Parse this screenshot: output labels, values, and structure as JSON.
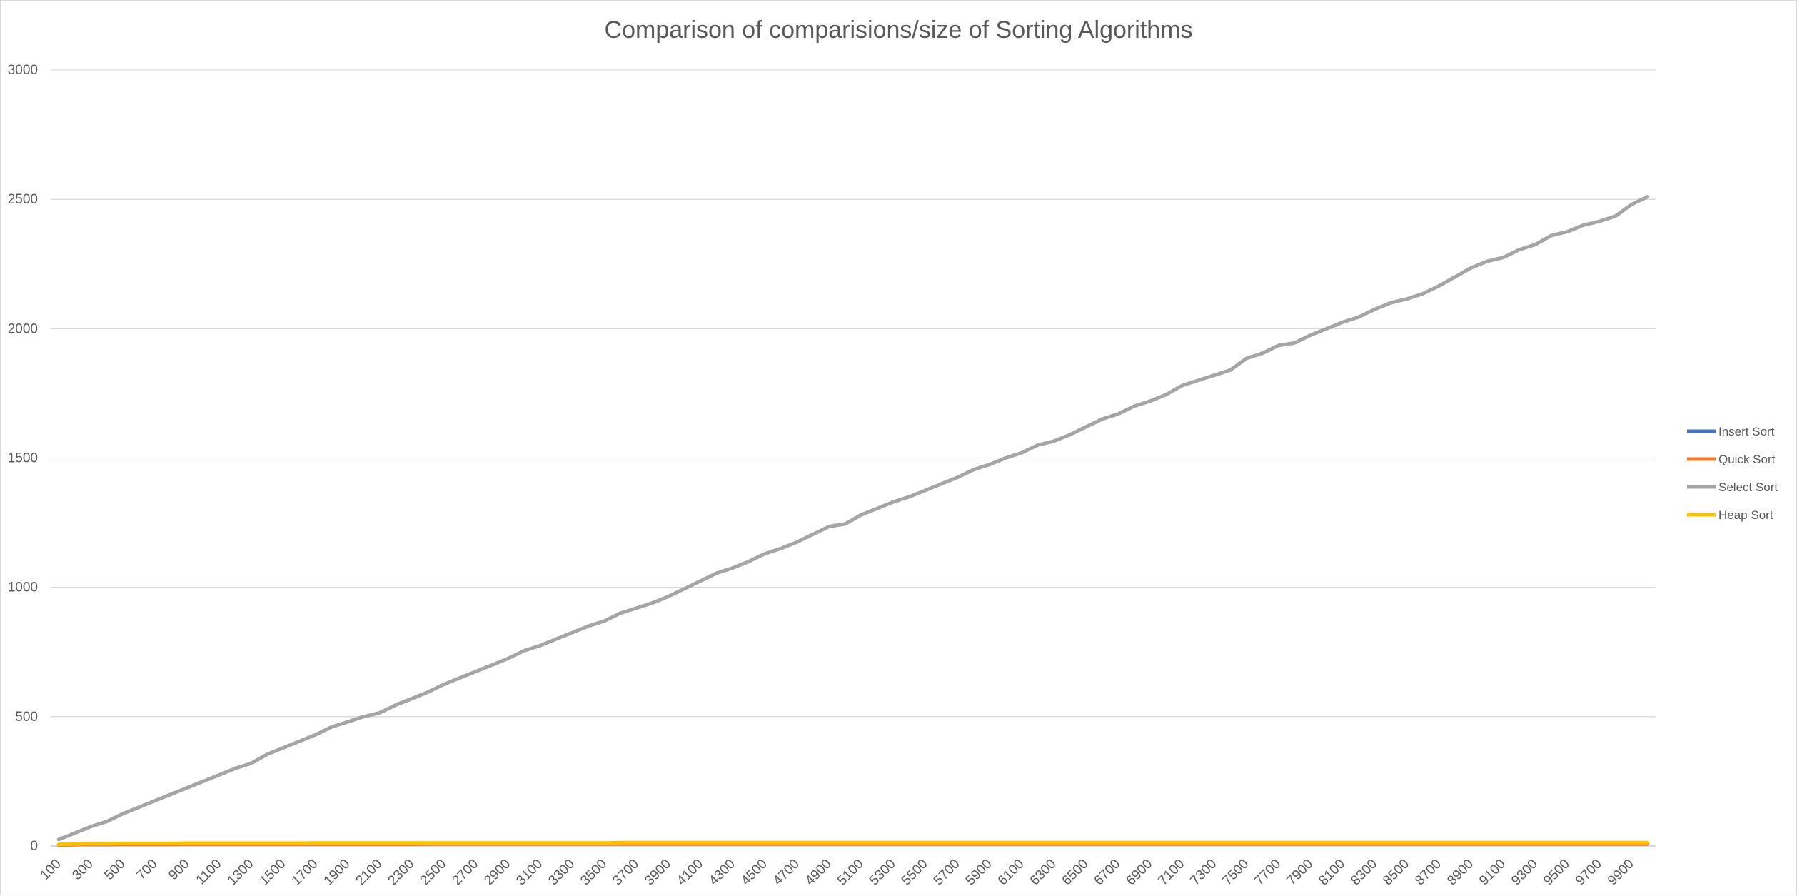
{
  "chart_data": {
    "type": "line",
    "title": "Comparison of comparisions/size of Sorting Algorithms",
    "xlabel": "",
    "ylabel": "",
    "ylim": [
      0,
      3000
    ],
    "yticks": [
      0,
      500,
      1000,
      1500,
      2000,
      2500,
      3000
    ],
    "grid": true,
    "legend_position": "right",
    "x": [
      100,
      200,
      300,
      400,
      500,
      600,
      700,
      800,
      900,
      1000,
      1100,
      1200,
      1300,
      1400,
      1500,
      1600,
      1700,
      1800,
      1900,
      2000,
      2100,
      2200,
      2300,
      2400,
      2500,
      2600,
      2700,
      2800,
      2900,
      3000,
      3100,
      3200,
      3300,
      3400,
      3500,
      3600,
      3700,
      3800,
      3900,
      4000,
      4100,
      4200,
      4300,
      4400,
      4500,
      4600,
      4700,
      4800,
      4900,
      5000,
      5100,
      5200,
      5300,
      5400,
      5500,
      5600,
      5700,
      5800,
      5900,
      6000,
      6100,
      6200,
      6300,
      6400,
      6500,
      6600,
      6700,
      6800,
      6900,
      7000,
      7100,
      7200,
      7300,
      7400,
      7500,
      7600,
      7700,
      7800,
      7900,
      8000,
      8100,
      8200,
      8300,
      8400,
      8500,
      8600,
      8700,
      8800,
      8900,
      9000,
      9100,
      9200,
      9300,
      9400,
      9500,
      9600,
      9700,
      9800,
      9900,
      10000
    ],
    "x_tick_labels": [
      "100",
      "300",
      "500",
      "700",
      "900",
      "1100",
      "1300",
      "1500",
      "1700",
      "1900",
      "2100",
      "2300",
      "2500",
      "2700",
      "2900",
      "3100",
      "3300",
      "3500",
      "3700",
      "3900",
      "4100",
      "4300",
      "4500",
      "4700",
      "4900",
      "5100",
      "5300",
      "5500",
      "5700",
      "5900",
      "6100",
      "6300",
      "6500",
      "6700",
      "6900",
      "7100",
      "7300",
      "7500",
      "7700",
      "7900",
      "8100",
      "8300",
      "8500",
      "8700",
      "8900",
      "9100",
      "9300",
      "9500",
      "9700",
      "9900"
    ],
    "series": [
      {
        "name": "Insert Sort",
        "color": "#4472c4",
        "values": [
          5,
          6,
          6,
          6,
          7,
          7,
          7,
          7,
          7,
          8,
          8,
          8,
          8,
          8,
          8,
          8,
          8,
          8,
          8,
          8,
          9,
          9,
          9,
          9,
          9,
          9,
          9,
          9,
          9,
          9,
          9,
          9,
          9,
          9,
          9,
          9,
          9,
          9,
          9,
          9,
          9,
          9,
          9,
          9,
          9,
          9,
          9,
          9,
          9,
          9,
          9,
          9,
          9,
          9,
          9,
          9,
          10,
          10,
          10,
          10,
          10,
          10,
          10,
          10,
          10,
          10,
          10,
          10,
          10,
          10,
          10,
          10,
          10,
          10,
          10,
          10,
          10,
          10,
          10,
          10,
          10,
          10,
          10,
          10,
          10,
          10,
          10,
          10,
          10,
          10,
          10,
          10,
          10,
          10,
          10,
          10,
          10,
          10,
          10,
          10
        ]
      },
      {
        "name": "Quick Sort",
        "color": "#ed7d31",
        "values": [
          4,
          5,
          6,
          6,
          6,
          6,
          6,
          6,
          7,
          7,
          7,
          7,
          7,
          7,
          7,
          7,
          7,
          7,
          7,
          7,
          7,
          7,
          7,
          8,
          8,
          8,
          8,
          8,
          8,
          8,
          8,
          8,
          8,
          8,
          8,
          8,
          8,
          8,
          8,
          8,
          8,
          8,
          8,
          8,
          8,
          8,
          8,
          8,
          8,
          8,
          8,
          8,
          8,
          8,
          8,
          8,
          8,
          8,
          8,
          8,
          8,
          8,
          8,
          8,
          8,
          8,
          8,
          8,
          8,
          8,
          8,
          8,
          8,
          8,
          8,
          8,
          8,
          8,
          8,
          8,
          8,
          8,
          8,
          8,
          8,
          8,
          8,
          8,
          8,
          8,
          8,
          8,
          8,
          8,
          8,
          8,
          8,
          8,
          8,
          8
        ]
      },
      {
        "name": "Select Sort",
        "color": "#a5a5a5",
        "values": [
          25,
          50,
          75,
          95,
          125,
          150,
          175,
          200,
          225,
          250,
          275,
          300,
          320,
          355,
          380,
          405,
          430,
          460,
          480,
          500,
          515,
          545,
          570,
          595,
          625,
          650,
          675,
          700,
          725,
          755,
          775,
          800,
          825,
          850,
          870,
          900,
          920,
          940,
          965,
          995,
          1025,
          1055,
          1075,
          1100,
          1130,
          1150,
          1175,
          1205,
          1235,
          1245,
          1280,
          1305,
          1330,
          1350,
          1375,
          1400,
          1425,
          1455,
          1475,
          1500,
          1520,
          1550,
          1565,
          1590,
          1620,
          1650,
          1670,
          1700,
          1720,
          1745,
          1780,
          1800,
          1820,
          1840,
          1885,
          1905,
          1935,
          1945,
          1975,
          2000,
          2025,
          2045,
          2075,
          2100,
          2115,
          2135,
          2165,
          2200,
          2235,
          2260,
          2275,
          2305,
          2325,
          2360,
          2375,
          2400,
          2415,
          2435,
          2480,
          2510
        ]
      },
      {
        "name": "Heap Sort",
        "color": "#ffc000",
        "values": [
          6,
          8,
          9,
          9,
          10,
          10,
          10,
          10,
          11,
          11,
          11,
          11,
          11,
          11,
          11,
          11,
          12,
          12,
          12,
          12,
          12,
          12,
          12,
          12,
          12,
          12,
          12,
          12,
          12,
          12,
          12,
          12,
          12,
          12,
          12,
          13,
          13,
          13,
          13,
          13,
          13,
          13,
          13,
          13,
          13,
          13,
          13,
          13,
          13,
          13,
          13,
          13,
          13,
          13,
          13,
          13,
          13,
          13,
          13,
          13,
          13,
          13,
          13,
          13,
          13,
          13,
          13,
          13,
          13,
          13,
          13,
          13,
          13,
          13,
          13,
          13,
          13,
          13,
          13,
          13,
          13,
          13,
          13,
          13,
          13,
          13,
          13,
          13,
          13,
          13,
          13,
          13,
          13,
          13,
          13,
          13,
          13,
          13,
          13,
          13
        ]
      }
    ]
  }
}
